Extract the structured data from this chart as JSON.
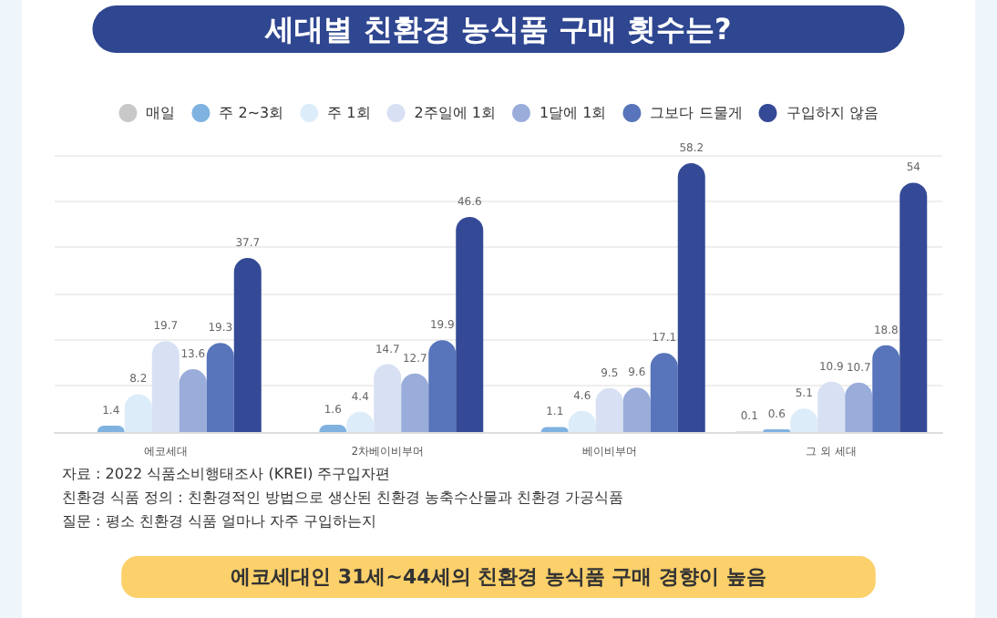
{
  "chart_data": {
    "type": "bar",
    "title": "세대별 친환경 농식품 구매 횟수는?",
    "categories": [
      "에코세대",
      "2차베이비부머",
      "베이비부머",
      "그 외 세대"
    ],
    "series": [
      {
        "name": "매일",
        "color": "#c8c8c8",
        "values": [
          null,
          null,
          null,
          0.1
        ]
      },
      {
        "name": "주 2~3회",
        "color": "#7fb2e0",
        "values": [
          1.4,
          1.6,
          1.1,
          0.6
        ]
      },
      {
        "name": "주 1회",
        "color": "#dcedf9",
        "values": [
          8.2,
          4.4,
          4.6,
          5.1
        ]
      },
      {
        "name": "2주일에 1회",
        "color": "#d8e0f3",
        "values": [
          19.7,
          14.7,
          9.5,
          10.9
        ]
      },
      {
        "name": "1달에 1회",
        "color": "#9aadda",
        "values": [
          13.6,
          12.7,
          9.6,
          10.7
        ]
      },
      {
        "name": "그보다 드물게",
        "color": "#5875bb",
        "values": [
          19.3,
          19.9,
          17.1,
          18.8
        ]
      },
      {
        "name": "구입하지 않음",
        "color": "#344a96",
        "values": [
          37.7,
          46.6,
          58.2,
          54
        ]
      }
    ],
    "ylim": [
      0,
      60
    ],
    "yticks": [
      {
        "value": 0,
        "label": null
      },
      {
        "value": 10,
        "label": null
      },
      {
        "value": 20,
        "label": null
      },
      {
        "value": 30,
        "label": null
      },
      {
        "value": 40,
        "label": null
      },
      {
        "value": 50,
        "label": null
      },
      {
        "value": 60,
        "label": null
      }
    ],
    "grid": "y",
    "legend": "top",
    "data_labels": true,
    "tick_labels": "x",
    "annotations": [
      "자료 : 2022 식품소비행태조사 (KREI) 주구입자편",
      "친환경 식품 정의 : 친환경적인 방법으로 생산된 친환경 농축수산물과 친환경 가공식품",
      "질문 : 평소 친환경 식품 얼마나 자주 구입하는지",
      "에코세대인 31세~44세의 친환경 농식품 구매 경향이 높음"
    ]
  }
}
